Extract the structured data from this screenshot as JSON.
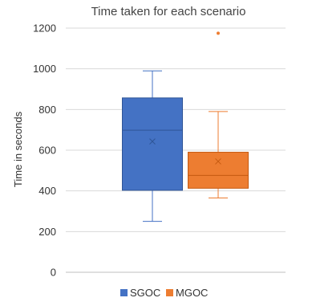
{
  "chart_data": {
    "type": "box",
    "title": "Time taken for each scenario",
    "xlabel": "",
    "ylabel": "Time in seconds",
    "ylim": [
      0,
      1200
    ],
    "yticks": [
      0,
      200,
      400,
      600,
      800,
      1000,
      1200
    ],
    "grid": true,
    "legend_position": "bottom",
    "series": [
      {
        "name": "SGOC",
        "color": "#4472C4",
        "whisker_low": 250,
        "q1": 403,
        "median": 698,
        "q3": 857,
        "whisker_high": 990,
        "mean": 643,
        "outliers": []
      },
      {
        "name": "MGOC",
        "color": "#ED7D31",
        "whisker_low": 365,
        "q1": 413,
        "median": 476,
        "q3": 590,
        "whisker_high": 790,
        "mean": 545,
        "outliers": [
          1175
        ]
      }
    ]
  }
}
